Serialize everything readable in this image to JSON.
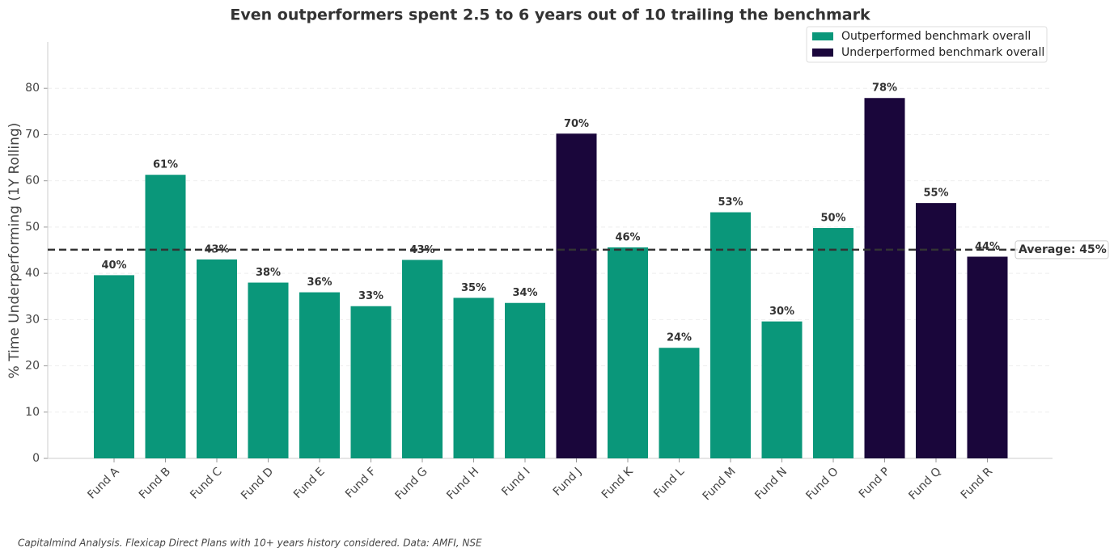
{
  "chart_data": {
    "type": "bar",
    "title": "Even outperformers spent 2.5 to 6 years out of 10 trailing the benchmark",
    "ylabel": "% Time Underperforming (1Y Rolling)",
    "footnote": "Capitalmind Analysis. Flexicap Direct Plans with 10+ years history considered. Data: AMFI, NSE",
    "categories": [
      "Fund A",
      "Fund B",
      "Fund C",
      "Fund D",
      "Fund E",
      "Fund F",
      "Fund G",
      "Fund H",
      "Fund I",
      "Fund J",
      "Fund K",
      "Fund L",
      "Fund M",
      "Fund N",
      "Fund O",
      "Fund P",
      "Fund Q",
      "Fund R"
    ],
    "series": [
      {
        "name": "Outperformed benchmark overall",
        "color": "#0a977a",
        "values": [
          39.6,
          61.3,
          43.0,
          38.0,
          35.9,
          32.9,
          42.9,
          34.7,
          33.6,
          null,
          45.6,
          23.9,
          53.2,
          29.6,
          49.8,
          null,
          null,
          null
        ],
        "value_labels": [
          "40%",
          "61%",
          "43%",
          "38%",
          "36%",
          "33%",
          "43%",
          "35%",
          "34%",
          null,
          "46%",
          "24%",
          "53%",
          "30%",
          "50%",
          null,
          null,
          null
        ]
      },
      {
        "name": "Underperformed benchmark overall",
        "color": "#1a063b",
        "values": [
          null,
          null,
          null,
          null,
          null,
          null,
          null,
          null,
          null,
          70.2,
          null,
          null,
          null,
          null,
          null,
          77.9,
          55.2,
          43.6
        ],
        "value_labels": [
          null,
          null,
          null,
          null,
          null,
          null,
          null,
          null,
          null,
          "70%",
          null,
          null,
          null,
          null,
          null,
          "78%",
          "55%",
          "44%"
        ]
      }
    ],
    "average": {
      "value": 45.1,
      "label": "Average: 45%"
    },
    "ylim": [
      0,
      90
    ],
    "yticks": [
      0,
      10,
      20,
      30,
      40,
      50,
      60,
      70,
      80
    ],
    "grid": true,
    "legend": "upper right"
  }
}
